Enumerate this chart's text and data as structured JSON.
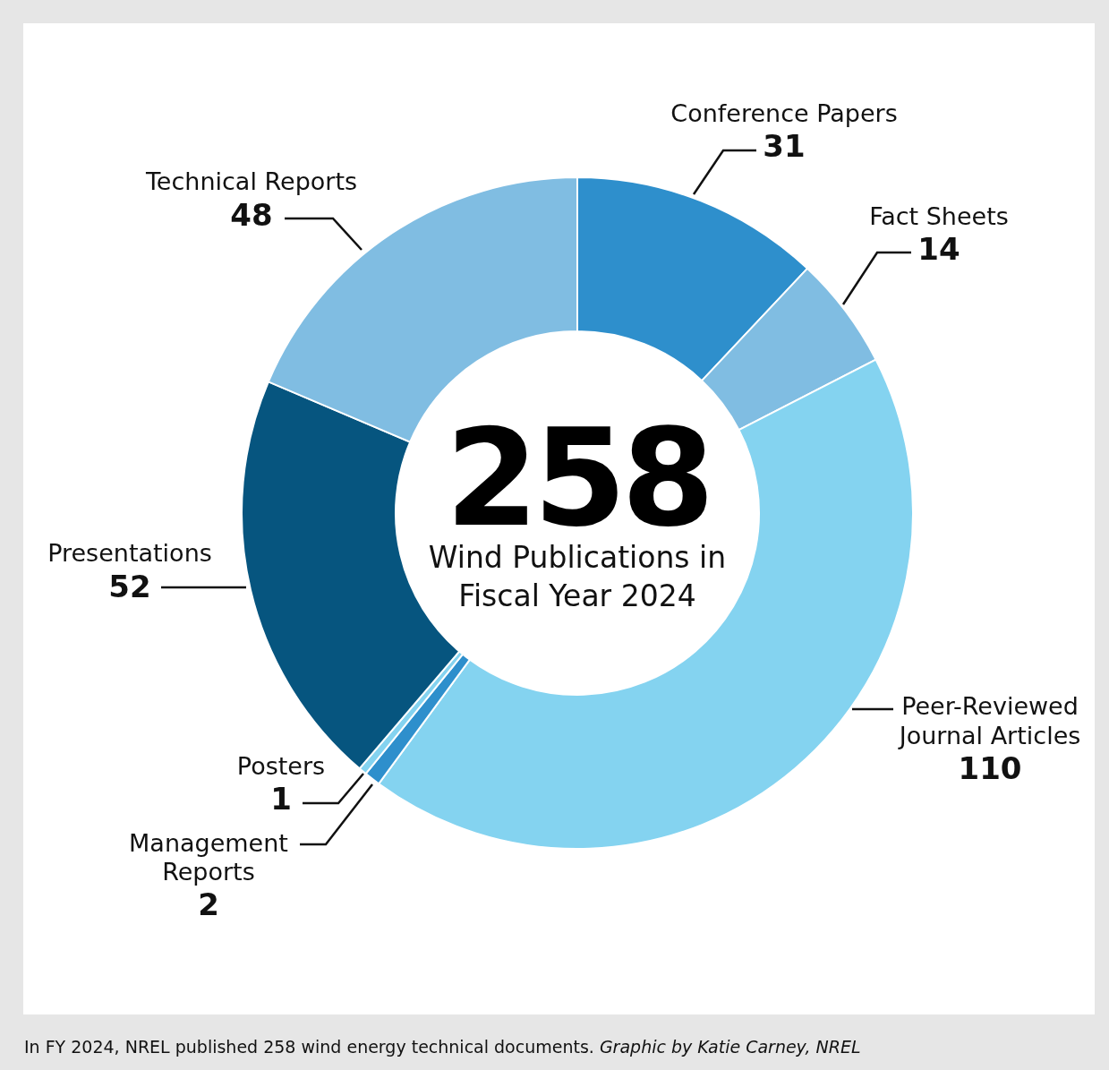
{
  "chart_data": {
    "type": "donut",
    "title": "258",
    "subtitle": "Wind Publications in Fiscal Year 2024",
    "categories": [
      "Conference Papers",
      "Fact Sheets",
      "Peer-Reviewed Journal Articles",
      "Management Reports",
      "Posters",
      "Presentations",
      "Technical Reports"
    ],
    "values": [
      31,
      14,
      110,
      2,
      1,
      52,
      48
    ],
    "colors": [
      "#2e8fcc",
      "#80bde2",
      "#84d3f0",
      "#2e8fcc",
      "#84d3f0",
      "#06557f",
      "#80bde2"
    ],
    "data_labels": true,
    "annotations": [
      "In FY 2024, NREL published 258 wind energy technical documents.",
      "Graphic by Katie Carney, NREL"
    ]
  }
}
